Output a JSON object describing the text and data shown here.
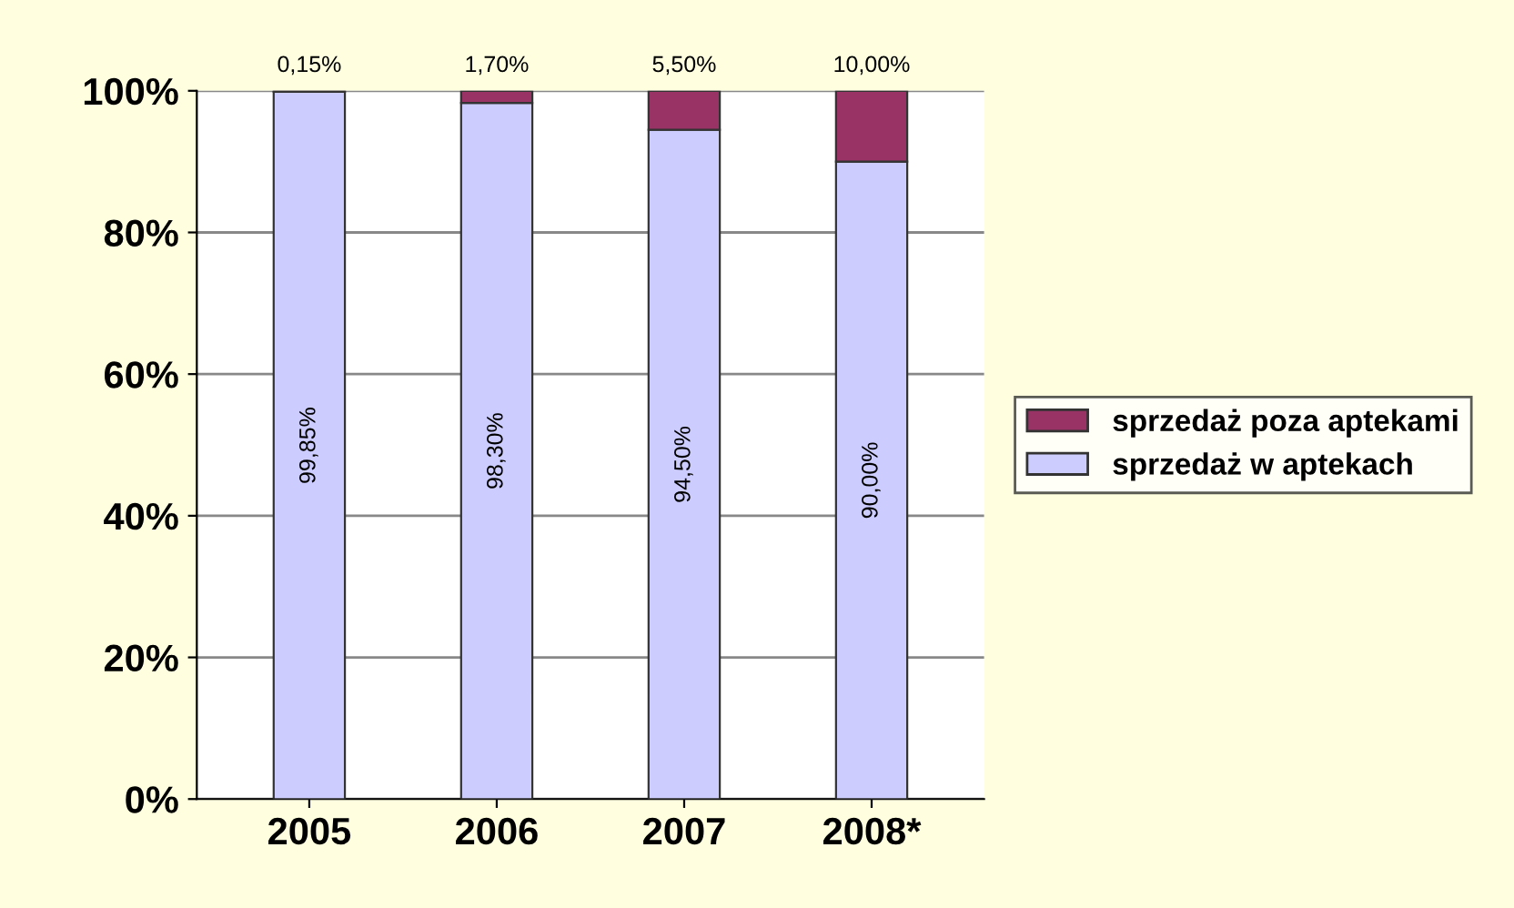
{
  "chart_data": {
    "type": "bar",
    "stacked": true,
    "categories": [
      "2005",
      "2006",
      "2007",
      "2008*"
    ],
    "series": [
      {
        "name": "sprzedaż w aptekach",
        "color": "#ccccff",
        "values": [
          99.85,
          98.3,
          94.5,
          90.0
        ],
        "value_labels": [
          "99,85%",
          "98,30%",
          "94,50%",
          "90,00%"
        ]
      },
      {
        "name": "sprzedaż poza aptekami",
        "color": "#993366",
        "values": [
          0.15,
          1.7,
          5.5,
          10.0
        ],
        "value_labels": [
          "0,15%",
          "1,70%",
          "5,50%",
          "10,00%"
        ]
      }
    ],
    "ylim": [
      0,
      100
    ],
    "yticks": [
      {
        "value": 0,
        "label": "0%"
      },
      {
        "value": 20,
        "label": "20%"
      },
      {
        "value": 40,
        "label": "40%"
      },
      {
        "value": 60,
        "label": "60%"
      },
      {
        "value": 80,
        "label": "80%"
      },
      {
        "value": 100,
        "label": "100%"
      }
    ],
    "grid": "y",
    "legend": "right"
  }
}
